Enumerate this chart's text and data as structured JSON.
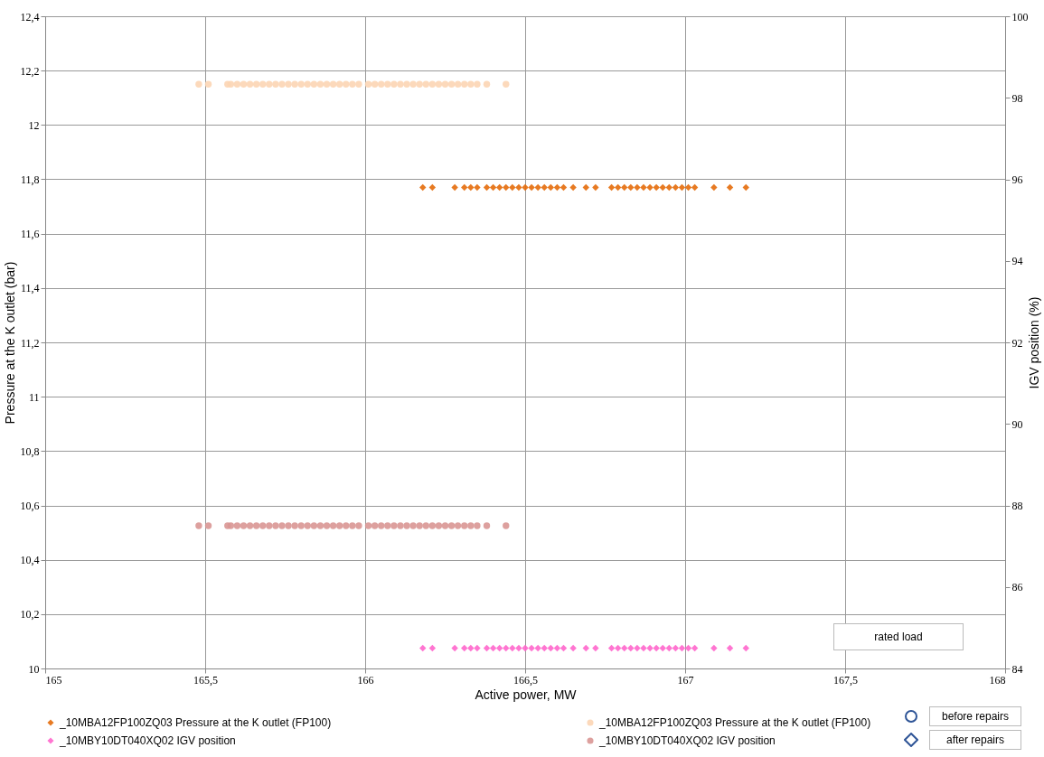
{
  "chart_data": {
    "type": "scatter",
    "xlabel": "Active power, MW",
    "ylabel": "Pressure at the K outlet (bar)",
    "y2label": "IGV position (%)",
    "xlim": [
      165,
      168
    ],
    "xticks": [
      165,
      {
        "value": 165.5,
        "label": "165,5"
      },
      166,
      {
        "value": 166.5,
        "label": "166,5"
      },
      167,
      {
        "value": 167.5,
        "label": "167,5"
      },
      168
    ],
    "ylim": [
      10,
      12.4
    ],
    "yticks": [
      10,
      {
        "value": 10.2,
        "label": "10,2"
      },
      {
        "value": 10.4,
        "label": "10,4"
      },
      {
        "value": 10.6,
        "label": "10,6"
      },
      {
        "value": 10.8,
        "label": "10,8"
      },
      11,
      {
        "value": 11.2,
        "label": "11,2"
      },
      {
        "value": 11.4,
        "label": "11,4"
      },
      {
        "value": 11.6,
        "label": "11,6"
      },
      {
        "value": 11.8,
        "label": "11,8"
      },
      12,
      {
        "value": 12.2,
        "label": "12,2"
      },
      {
        "value": 12.4,
        "label": "12,4"
      }
    ],
    "y2lim": [
      84,
      100
    ],
    "y2ticks": [
      84,
      86,
      88,
      90,
      92,
      94,
      96,
      98,
      100
    ],
    "grid": true,
    "legend": "bottom",
    "annotations": [
      "rated load",
      "before repairs",
      "after repairs"
    ],
    "series": [
      {
        "name": "_10MBA12FP100ZQ03 Pressure at the K outlet (FP100)",
        "color": "#e46c0a",
        "marker": "diamond",
        "x": [
          166.18,
          166.21,
          166.28,
          166.31,
          166.33,
          166.35,
          166.38,
          166.4,
          166.42,
          166.44,
          166.46,
          166.48,
          166.5,
          166.52,
          166.54,
          166.56,
          166.58,
          166.6,
          166.62,
          166.65,
          166.69,
          166.72,
          166.77,
          166.79,
          166.81,
          166.83,
          166.85,
          166.87,
          166.89,
          166.91,
          166.93,
          166.95,
          166.97,
          166.99,
          167.01,
          167.03,
          167.09,
          167.14,
          167.19
        ],
        "values": [
          11.77,
          11.77,
          11.77,
          11.77,
          11.77,
          11.77,
          11.77,
          11.77,
          11.77,
          11.77,
          11.77,
          11.77,
          11.77,
          11.77,
          11.77,
          11.77,
          11.77,
          11.77,
          11.77,
          11.77,
          11.77,
          11.77,
          11.77,
          11.77,
          11.77,
          11.77,
          11.77,
          11.77,
          11.77,
          11.77,
          11.77,
          11.77,
          11.77,
          11.77,
          11.77,
          11.77,
          11.77,
          11.77,
          11.77
        ]
      },
      {
        "name": "_10MBA12FP100ZQ03 Pressure at the K outlet (FP100)​",
        "color": "#fcd5b4",
        "marker": "circle",
        "x": [
          165.48,
          165.51,
          165.57,
          165.58,
          165.6,
          165.62,
          165.64,
          165.66,
          165.68,
          165.7,
          165.72,
          165.74,
          165.76,
          165.78,
          165.8,
          165.82,
          165.84,
          165.86,
          165.88,
          165.9,
          165.92,
          165.94,
          165.96,
          165.98,
          166.01,
          166.03,
          166.05,
          166.07,
          166.09,
          166.11,
          166.13,
          166.15,
          166.17,
          166.19,
          166.21,
          166.23,
          166.25,
          166.27,
          166.29,
          166.31,
          166.33,
          166.35,
          166.38,
          166.44
        ],
        "values": [
          12.15,
          12.15,
          12.15,
          12.15,
          12.15,
          12.15,
          12.15,
          12.15,
          12.15,
          12.15,
          12.15,
          12.15,
          12.15,
          12.15,
          12.15,
          12.15,
          12.15,
          12.15,
          12.15,
          12.15,
          12.15,
          12.15,
          12.15,
          12.15,
          12.15,
          12.15,
          12.15,
          12.15,
          12.15,
          12.15,
          12.15,
          12.15,
          12.15,
          12.15,
          12.15,
          12.15,
          12.15,
          12.15,
          12.15,
          12.15,
          12.15,
          12.15,
          12.15,
          12.15
        ]
      },
      {
        "name": "_10MBY10DT040XQ02 IGV position",
        "color": "#ff66cc",
        "marker": "diamond",
        "axis": "y2",
        "x": [
          166.18,
          166.21,
          166.28,
          166.31,
          166.33,
          166.35,
          166.38,
          166.4,
          166.42,
          166.44,
          166.46,
          166.48,
          166.5,
          166.52,
          166.54,
          166.56,
          166.58,
          166.6,
          166.62,
          166.65,
          166.69,
          166.72,
          166.77,
          166.79,
          166.81,
          166.83,
          166.85,
          166.87,
          166.89,
          166.91,
          166.93,
          166.95,
          166.97,
          166.99,
          167.01,
          167.03,
          167.09,
          167.14,
          167.19
        ],
        "values": [
          84.5,
          84.5,
          84.5,
          84.5,
          84.5,
          84.5,
          84.5,
          84.5,
          84.5,
          84.5,
          84.5,
          84.5,
          84.5,
          84.5,
          84.5,
          84.5,
          84.5,
          84.5,
          84.5,
          84.5,
          84.5,
          84.5,
          84.5,
          84.5,
          84.5,
          84.5,
          84.5,
          84.5,
          84.5,
          84.5,
          84.5,
          84.5,
          84.5,
          84.5,
          84.5,
          84.5,
          84.5,
          84.5,
          84.5
        ]
      },
      {
        "name": "_10MBY10DT040XQ02 IGV position​",
        "color": "#d99694",
        "marker": "circle",
        "axis": "y2",
        "x": [
          165.48,
          165.51,
          165.57,
          165.58,
          165.6,
          165.62,
          165.64,
          165.66,
          165.68,
          165.7,
          165.72,
          165.74,
          165.76,
          165.78,
          165.8,
          165.82,
          165.84,
          165.86,
          165.88,
          165.9,
          165.92,
          165.94,
          165.96,
          165.98,
          166.01,
          166.03,
          166.05,
          166.07,
          166.09,
          166.11,
          166.13,
          166.15,
          166.17,
          166.19,
          166.21,
          166.23,
          166.25,
          166.27,
          166.29,
          166.31,
          166.33,
          166.35,
          166.38,
          166.44
        ],
        "values": [
          87.5,
          87.5,
          87.5,
          87.5,
          87.5,
          87.5,
          87.5,
          87.5,
          87.5,
          87.5,
          87.5,
          87.5,
          87.5,
          87.5,
          87.5,
          87.5,
          87.5,
          87.5,
          87.5,
          87.5,
          87.5,
          87.5,
          87.5,
          87.5,
          87.5,
          87.5,
          87.5,
          87.5,
          87.5,
          87.5,
          87.5,
          87.5,
          87.5,
          87.5,
          87.5,
          87.5,
          87.5,
          87.5,
          87.5,
          87.5,
          87.5,
          87.5,
          87.5,
          87.5
        ]
      }
    ]
  }
}
